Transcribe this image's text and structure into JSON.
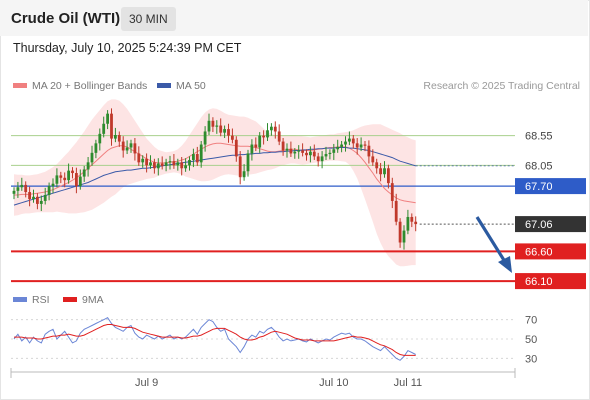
{
  "header": {
    "title": "Crude Oil (WTI)",
    "timeframe": "30 MIN",
    "datetime": "Thursday, July 10, 2025 5:24:39 PM CET"
  },
  "legend": {
    "ma20_label": "MA 20 + Bollinger Bands",
    "ma50_label": "MA 50",
    "credit": "Research © 2025 Trading Central",
    "rsi_label": "RSI",
    "rsi_ma_label": "9MA"
  },
  "colors": {
    "ma20": "#f08080",
    "bands": "#fde4e4",
    "ma50": "#3b5aa8",
    "bull": "#2e8b2e",
    "bear": "#c0392b",
    "resistance": "#a8d08d",
    "pivot": "#2e5cc8",
    "support": "#e02020",
    "current": "#333333",
    "rsi": "#6b86d6",
    "rsi_ma": "#e02020"
  },
  "chart_data": [
    {
      "type": "candlestick",
      "title": "Crude Oil (WTI)",
      "interval": "30 MIN",
      "x_labels": [
        "Jul 9",
        "Jul 10",
        "Jul 11"
      ],
      "price_levels": [
        {
          "value": 68.55,
          "label": "68.55",
          "kind": "resistance"
        },
        {
          "value": 68.05,
          "label": "68.05",
          "kind": "resistance"
        },
        {
          "value": 67.7,
          "label": "67.70",
          "kind": "pivot"
        },
        {
          "value": 67.06,
          "label": "67.06",
          "kind": "current"
        },
        {
          "value": 66.6,
          "label": "66.60",
          "kind": "support"
        },
        {
          "value": 66.1,
          "label": "66.10",
          "kind": "support"
        }
      ],
      "close": [
        67.62,
        67.68,
        67.72,
        67.6,
        67.48,
        67.52,
        67.4,
        67.45,
        67.55,
        67.7,
        67.74,
        67.88,
        67.84,
        67.8,
        67.96,
        67.92,
        67.7,
        67.86,
        67.98,
        68.1,
        68.26,
        68.42,
        68.58,
        68.75,
        68.92,
        68.5,
        68.56,
        68.45,
        68.3,
        68.35,
        68.42,
        68.25,
        68.1,
        68.16,
        68.05,
        68.1,
        68.0,
        68.08,
        68.04,
        68.1,
        68.12,
        68.05,
        68.1,
        68.0,
        68.05,
        68.14,
        68.24,
        68.1,
        68.4,
        68.62,
        68.8,
        68.7,
        68.72,
        68.6,
        68.66,
        68.55,
        68.48,
        68.2,
        67.85,
        67.95,
        68.25,
        68.4,
        68.35,
        68.55,
        68.52,
        68.64,
        68.7,
        68.62,
        68.45,
        68.3,
        68.33,
        68.25,
        68.28,
        68.3,
        68.26,
        68.22,
        68.28,
        68.2,
        68.12,
        68.2,
        68.24,
        68.26,
        68.32,
        68.36,
        68.4,
        68.45,
        68.5,
        68.42,
        68.35,
        68.4,
        68.38,
        68.2,
        68.1,
        68.0,
        67.9,
        68.0,
        67.75,
        67.45,
        67.1,
        66.75,
        66.95,
        67.18,
        67.1,
        67.06
      ],
      "ma20": [
        67.55,
        67.55,
        67.56,
        67.56,
        67.56,
        67.57,
        67.58,
        67.59,
        67.6,
        67.62,
        67.64,
        67.67,
        67.7,
        67.73,
        67.76,
        67.8,
        67.84,
        67.89,
        67.94,
        68.0,
        68.06,
        68.12,
        68.18,
        68.24,
        68.3,
        68.34,
        68.36,
        68.38,
        68.38,
        68.36,
        68.32,
        68.28,
        68.24,
        68.2,
        68.16,
        68.13,
        68.1,
        68.09,
        68.09,
        68.09,
        68.1,
        68.11,
        68.12,
        68.14,
        68.16,
        68.2,
        68.24,
        68.28,
        68.32,
        68.36,
        68.39,
        68.41,
        68.42,
        68.42,
        68.41,
        68.4,
        68.39,
        68.38,
        68.37,
        68.37,
        68.37,
        68.36,
        68.35,
        68.33,
        68.31,
        68.29,
        68.28,
        68.28,
        68.29,
        68.3,
        68.31,
        68.32,
        68.32,
        68.31,
        68.3,
        68.3,
        68.3,
        68.31,
        68.32,
        68.33,
        68.34,
        68.35,
        68.35,
        68.36,
        68.36,
        68.36,
        68.34,
        68.3,
        68.25,
        68.18,
        68.1,
        68.01,
        67.92,
        67.82,
        67.74,
        67.66,
        67.6,
        67.55,
        67.5,
        67.47,
        67.45,
        67.44,
        67.43,
        67.42
      ],
      "ma50": [
        67.38,
        67.4,
        67.42,
        67.44,
        67.46,
        67.48,
        67.5,
        67.52,
        67.54,
        67.56,
        67.58,
        67.6,
        67.62,
        67.64,
        67.66,
        67.68,
        67.7,
        67.72,
        67.74,
        67.76,
        67.79,
        67.82,
        67.85,
        67.88,
        67.9,
        67.92,
        67.94,
        67.95,
        67.96,
        67.97,
        67.97,
        67.98,
        67.99,
        68.0,
        68.0,
        68.01,
        68.02,
        68.03,
        68.04,
        68.05,
        68.06,
        68.07,
        68.08,
        68.09,
        68.1,
        68.11,
        68.12,
        68.13,
        68.14,
        68.15,
        68.16,
        68.17,
        68.18,
        68.19,
        68.2,
        68.21,
        68.22,
        68.22,
        68.23,
        68.23,
        68.24,
        68.24,
        68.25,
        68.25,
        68.26,
        68.26,
        68.27,
        68.27,
        68.28,
        68.28,
        68.29,
        68.29,
        68.3,
        68.3,
        68.31,
        68.31,
        68.32,
        68.32,
        68.33,
        68.33,
        68.34,
        68.34,
        68.34,
        68.35,
        68.35,
        68.35,
        68.34,
        68.34,
        68.33,
        68.32,
        68.31,
        68.3,
        68.28,
        68.26,
        68.24,
        68.22,
        68.2,
        68.18,
        68.15,
        68.12,
        68.1,
        68.08,
        68.06,
        68.04
      ],
      "bb_width": [
        0.35,
        0.34,
        0.33,
        0.32,
        0.32,
        0.32,
        0.32,
        0.33,
        0.34,
        0.36,
        0.38,
        0.4,
        0.44,
        0.48,
        0.52,
        0.56,
        0.6,
        0.64,
        0.68,
        0.72,
        0.76,
        0.78,
        0.8,
        0.82,
        0.83,
        0.82,
        0.8,
        0.76,
        0.7,
        0.64,
        0.58,
        0.52,
        0.46,
        0.4,
        0.34,
        0.3,
        0.26,
        0.22,
        0.2,
        0.18,
        0.18,
        0.18,
        0.2,
        0.24,
        0.3,
        0.36,
        0.42,
        0.48,
        0.54,
        0.58,
        0.6,
        0.6,
        0.58,
        0.55,
        0.52,
        0.5,
        0.5,
        0.5,
        0.5,
        0.5,
        0.48,
        0.46,
        0.44,
        0.4,
        0.36,
        0.32,
        0.3,
        0.28,
        0.26,
        0.25,
        0.24,
        0.24,
        0.24,
        0.24,
        0.24,
        0.23,
        0.22,
        0.22,
        0.22,
        0.22,
        0.22,
        0.22,
        0.22,
        0.23,
        0.24,
        0.25,
        0.28,
        0.34,
        0.42,
        0.52,
        0.62,
        0.72,
        0.82,
        0.92,
        1.0,
        1.05,
        1.08,
        1.1,
        1.12,
        1.12,
        1.1,
        1.08,
        1.06,
        1.05
      ],
      "rsi": [
        50,
        55,
        48,
        52,
        46,
        52,
        48,
        46,
        55,
        58,
        60,
        50,
        54,
        58,
        52,
        46,
        48,
        56,
        60,
        62,
        64,
        66,
        68,
        70,
        72,
        66,
        62,
        60,
        58,
        62,
        64,
        56,
        52,
        50,
        54,
        52,
        50,
        53,
        50,
        52,
        54,
        50,
        52,
        50,
        52,
        56,
        60,
        55,
        62,
        66,
        70,
        68,
        62,
        58,
        60,
        50,
        46,
        42,
        36,
        42,
        50,
        54,
        52,
        58,
        56,
        60,
        62,
        58,
        52,
        48,
        50,
        48,
        49,
        50,
        48,
        47,
        50,
        48,
        46,
        48,
        50,
        49,
        52,
        54,
        56,
        55,
        56,
        52,
        50,
        50,
        48,
        45,
        42,
        40,
        38,
        42,
        38,
        34,
        30,
        28,
        32,
        38,
        36,
        34
      ],
      "rsi_ma": [
        52,
        52,
        52,
        51,
        51,
        51,
        50,
        50,
        51,
        52,
        53,
        53,
        54,
        54,
        55,
        54,
        53,
        53,
        54,
        56,
        58,
        60,
        62,
        64,
        65,
        65,
        64,
        63,
        62,
        62,
        62,
        61,
        59,
        57,
        56,
        55,
        54,
        53,
        52,
        52,
        52,
        52,
        52,
        51,
        51,
        52,
        53,
        53,
        54,
        56,
        58,
        60,
        61,
        61,
        61,
        59,
        57,
        55,
        52,
        50,
        49,
        49,
        50,
        52,
        53,
        55,
        57,
        58,
        57,
        56,
        55,
        53,
        51,
        50,
        49,
        49,
        49,
        48,
        48,
        48,
        48,
        48,
        48,
        49,
        50,
        51,
        52,
        53,
        52,
        52,
        51,
        50,
        48,
        46,
        44,
        43,
        41,
        39,
        36,
        34,
        33,
        33,
        33,
        33
      ],
      "rsi_levels": [
        {
          "value": 70,
          "label": "70"
        },
        {
          "value": 50,
          "label": "50"
        },
        {
          "value": 30,
          "label": "30"
        }
      ]
    }
  ]
}
